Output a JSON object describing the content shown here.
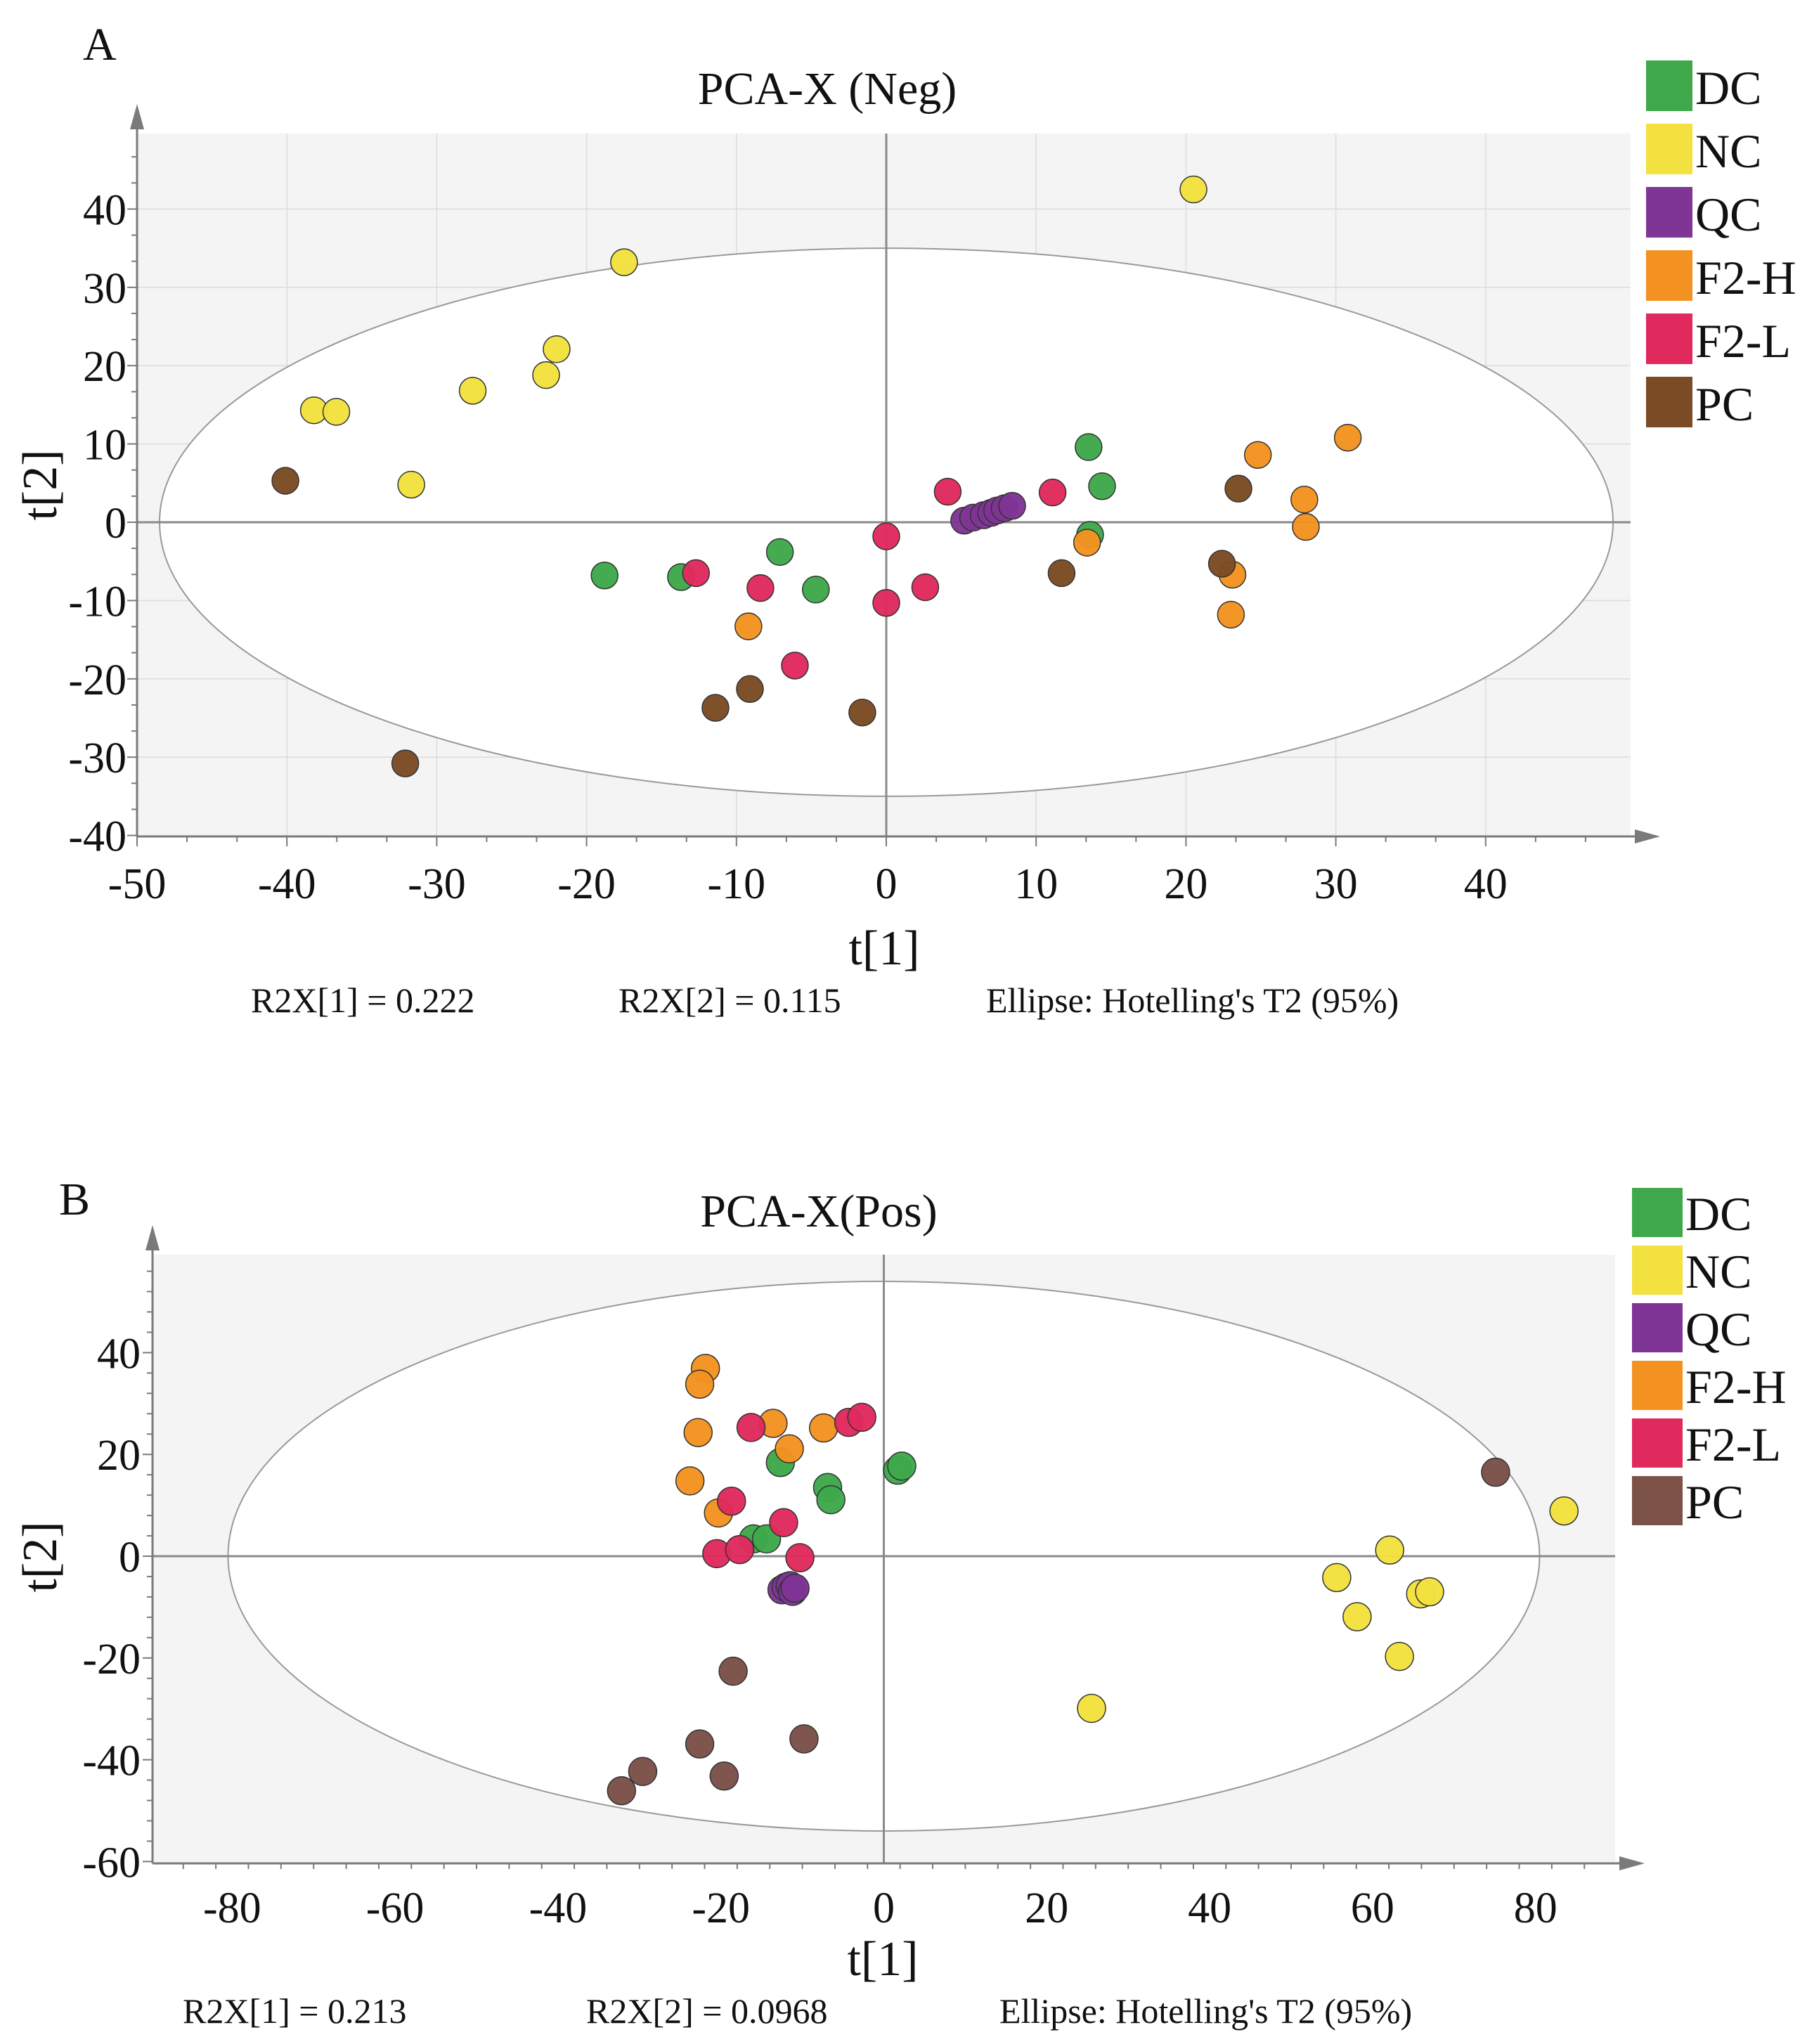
{
  "chart_data": [
    {
      "panel_label": "A",
      "type": "scatter",
      "title": "PCA-X (Neg)",
      "xlabel": "t[1]",
      "ylabel": "t[2]",
      "xlim": [
        -50,
        49
      ],
      "ylim": [
        -40,
        49
      ],
      "x_ticks": [
        -50,
        -40,
        -30,
        -20,
        -10,
        0,
        10,
        20,
        30,
        40
      ],
      "y_ticks": [
        -40,
        -30,
        -20,
        -10,
        0,
        10,
        20,
        30,
        40
      ],
      "grid": true,
      "legend_position": "right",
      "ellipse": {
        "label": "Hotelling's T2 (95%)",
        "center": [
          0,
          0
        ],
        "semi_x": 48.5,
        "semi_y": 35
      },
      "footnotes": [
        "R2X[1] = 0.222",
        "R2X[2] = 0.115",
        "Ellipse: Hotelling's T2 (95%)"
      ],
      "series": [
        {
          "name": "DC",
          "color": "#3ea84b",
          "points": [
            [
              -18.8,
              -6.8
            ],
            [
              -13.7,
              -7.0
            ],
            [
              -7.1,
              -3.8
            ],
            [
              -4.7,
              -8.6
            ],
            [
              13.5,
              9.6
            ],
            [
              14.4,
              4.6
            ],
            [
              13.6,
              -1.6
            ]
          ]
        },
        {
          "name": "NC",
          "color": "#f2e13e",
          "points": [
            [
              20.5,
              42.5
            ],
            [
              -17.5,
              33.2
            ],
            [
              -38.2,
              14.3
            ],
            [
              -36.7,
              14.1
            ],
            [
              -27.6,
              16.8
            ],
            [
              -22.7,
              18.8
            ],
            [
              -22.0,
              22.1
            ],
            [
              -31.7,
              4.8
            ]
          ]
        },
        {
          "name": "QC",
          "color": "#7f3595",
          "points": [
            [
              5.2,
              0.2
            ],
            [
              5.8,
              0.6
            ],
            [
              6.5,
              0.9
            ],
            [
              7.0,
              1.2
            ],
            [
              7.4,
              1.5
            ],
            [
              7.9,
              1.8
            ],
            [
              8.4,
              2.1
            ]
          ]
        },
        {
          "name": "F2-H",
          "color": "#f39220",
          "points": [
            [
              -9.2,
              -13.3
            ],
            [
              13.4,
              -2.6
            ],
            [
              23.1,
              -6.7
            ],
            [
              23.0,
              -11.8
            ],
            [
              24.8,
              8.6
            ],
            [
              27.9,
              2.9
            ],
            [
              28.0,
              -0.6
            ],
            [
              30.8,
              10.8
            ]
          ]
        },
        {
          "name": "F2-L",
          "color": "#e0295d",
          "points": [
            [
              -12.7,
              -6.5
            ],
            [
              -8.4,
              -8.4
            ],
            [
              -6.1,
              -18.3
            ],
            [
              0.0,
              -1.8
            ],
            [
              0.0,
              -10.3
            ],
            [
              2.6,
              -8.3
            ],
            [
              4.1,
              3.9
            ],
            [
              11.1,
              3.8
            ]
          ]
        },
        {
          "name": "PC",
          "color": "#7a4b24",
          "points": [
            [
              -40.1,
              5.3
            ],
            [
              -32.1,
              -30.8
            ],
            [
              -11.4,
              -23.7
            ],
            [
              -9.1,
              -21.3
            ],
            [
              -1.6,
              -24.3
            ],
            [
              11.7,
              -6.5
            ],
            [
              22.4,
              -5.3
            ],
            [
              23.5,
              4.3
            ]
          ]
        }
      ]
    },
    {
      "panel_label": "B",
      "type": "scatter",
      "title": "PCA-X(Pos)",
      "xlabel": "t[1]",
      "ylabel": "t[2]",
      "xlim": [
        -90,
        90
      ],
      "ylim": [
        -60,
        60
      ],
      "x_ticks": [
        -80,
        -60,
        -40,
        -20,
        0,
        20,
        40,
        60,
        80
      ],
      "y_ticks": [
        -60,
        -40,
        -20,
        0,
        20,
        40
      ],
      "grid": false,
      "legend_position": "right",
      "ellipse": {
        "label": "Hotelling's T2 (95%)",
        "center": [
          0,
          0
        ],
        "semi_x": 80.5,
        "semi_y": 54
      },
      "footnotes": [
        "R2X[1] = 0.213",
        "R2X[2] = 0.0968",
        "Ellipse: Hotelling's T2 (95%)"
      ],
      "series": [
        {
          "name": "DC",
          "color": "#3ea84b",
          "points": [
            [
              -12.7,
              18.4
            ],
            [
              -6.9,
              13.5
            ],
            [
              -6.5,
              11.1
            ],
            [
              1.7,
              16.9
            ],
            [
              2.2,
              17.7
            ],
            [
              -16.0,
              3.4
            ],
            [
              -14.4,
              3.4
            ]
          ]
        },
        {
          "name": "NC",
          "color": "#f2e13e",
          "points": [
            [
              83.5,
              8.9
            ],
            [
              62.1,
              1.2
            ],
            [
              55.6,
              -4.2
            ],
            [
              58.1,
              -11.9
            ],
            [
              65.9,
              -7.4
            ],
            [
              67.0,
              -7.0
            ],
            [
              63.3,
              -19.7
            ],
            [
              25.5,
              -29.9
            ]
          ]
        },
        {
          "name": "QC",
          "color": "#7f3595",
          "points": [
            [
              -12.5,
              -6.6
            ],
            [
              -12.0,
              -6.1
            ],
            [
              -11.5,
              -5.8
            ],
            [
              -11.2,
              -6.9
            ],
            [
              -10.9,
              -6.3
            ]
          ]
        },
        {
          "name": "F2-H",
          "color": "#f39220",
          "points": [
            [
              -21.9,
              36.9
            ],
            [
              -22.6,
              33.8
            ],
            [
              -13.6,
              26.1
            ],
            [
              -7.4,
              25.2
            ],
            [
              -22.8,
              24.3
            ],
            [
              -11.6,
              21.1
            ],
            [
              -23.8,
              14.8
            ],
            [
              -20.3,
              8.5
            ]
          ]
        },
        {
          "name": "F2-L",
          "color": "#e0295d",
          "points": [
            [
              -16.3,
              25.3
            ],
            [
              -4.3,
              26.3
            ],
            [
              -2.7,
              27.3
            ],
            [
              -18.7,
              10.8
            ],
            [
              -12.3,
              6.6
            ],
            [
              -20.5,
              0.5
            ],
            [
              -17.7,
              1.3
            ],
            [
              -10.3,
              -0.3
            ]
          ]
        },
        {
          "name": "PC",
          "color": "#7b5148",
          "points": [
            [
              75.1,
              16.5
            ],
            [
              -18.5,
              -22.6
            ],
            [
              -22.6,
              -36.9
            ],
            [
              -9.8,
              -35.9
            ],
            [
              -19.6,
              -43.2
            ],
            [
              -29.6,
              -42.3
            ],
            [
              -32.2,
              -46.1
            ]
          ]
        }
      ]
    }
  ]
}
